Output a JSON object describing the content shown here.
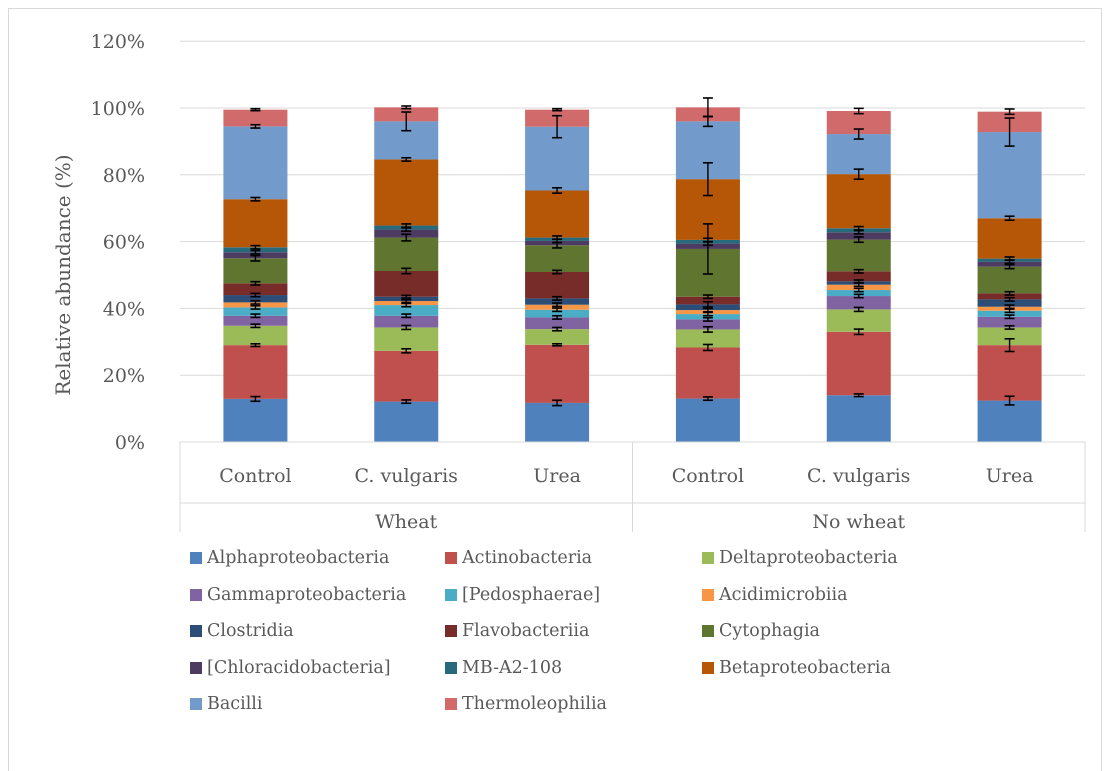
{
  "chart_data": {
    "type": "bar",
    "stacked": true,
    "ylabel": "Relative abundance (%)",
    "xlabel": "",
    "ylim": [
      0,
      120
    ],
    "yticks": [
      "0%",
      "20%",
      "40%",
      "60%",
      "80%",
      "100%",
      "120%"
    ],
    "grid": true,
    "legend_position": "bottom",
    "groups": [
      {
        "label": "Wheat",
        "categories": [
          "Control",
          "C. vulgaris",
          "Urea"
        ]
      },
      {
        "label": "No wheat",
        "categories": [
          "Control",
          "C. vulgaris",
          "Urea"
        ]
      }
    ],
    "categories": [
      "Control",
      "C. vulgaris",
      "Urea",
      "Control",
      "C. vulgaris",
      "Urea"
    ],
    "series": [
      {
        "name": "Alphaproteobacteria",
        "color": "#4f81bd",
        "values": [
          12.9,
          12.1,
          11.7,
          13.0,
          14.0,
          12.4
        ],
        "errors": [
          0.7,
          0.5,
          0.8,
          0.5,
          0.4,
          1.3
        ]
      },
      {
        "name": "Actinobacteria",
        "color": "#c0504d",
        "values": [
          16.1,
          15.2,
          17.4,
          15.3,
          19.0,
          16.6
        ],
        "errors": [
          0.4,
          0.6,
          0.3,
          0.9,
          0.8,
          1.9
        ]
      },
      {
        "name": "Deltaproteobacteria",
        "color": "#9bbb59",
        "values": [
          5.8,
          7.0,
          4.7,
          5.4,
          6.7,
          5.3
        ],
        "errors": [
          0.5,
          0.6,
          0.5,
          0.8,
          0.6,
          0.5
        ]
      },
      {
        "name": "Gammaproteobacteria",
        "color": "#8064a2",
        "values": [
          3.0,
          3.5,
          3.5,
          3.0,
          4.0,
          3.2
        ],
        "errors": [
          0.5,
          0.5,
          0.5,
          0.5,
          0.5,
          0.5
        ]
      },
      {
        "name": "[Pedosphaerae]",
        "color": "#4bacc6",
        "values": [
          2.5,
          3.2,
          2.3,
          1.6,
          1.8,
          1.8
        ],
        "errors": [
          0.5,
          0.5,
          0.5,
          0.5,
          0.5,
          0.5
        ]
      },
      {
        "name": "Acidimicrobiia",
        "color": "#f79646",
        "values": [
          1.5,
          1.2,
          1.5,
          1.2,
          1.6,
          1.2
        ],
        "errors": [
          0.5,
          0.4,
          0.5,
          0.5,
          0.5,
          0.5
        ]
      },
      {
        "name": "Clostridia",
        "color": "#2c4d75",
        "values": [
          2.2,
          1.3,
          1.9,
          1.7,
          1.0,
          2.2
        ],
        "errors": [
          0.5,
          0.4,
          0.5,
          0.8,
          0.4,
          0.5
        ]
      },
      {
        "name": "Flavobacteriia",
        "color": "#772c2a",
        "values": [
          3.5,
          7.7,
          7.9,
          2.3,
          3.0,
          1.8
        ],
        "errors": [
          0.5,
          0.8,
          0.5,
          0.5,
          0.5,
          0.5
        ]
      },
      {
        "name": "Cytophagia",
        "color": "#5f7530",
        "values": [
          7.5,
          10.0,
          8.0,
          14.3,
          9.5,
          8.0
        ],
        "errors": [
          0.8,
          1.0,
          0.8,
          7.5,
          0.8,
          0.6
        ]
      },
      {
        "name": "[Chloracidobacteria]",
        "color": "#4d3b62",
        "values": [
          1.8,
          2.4,
          1.3,
          1.6,
          2.2,
          1.5
        ],
        "errors": [
          0.5,
          0.5,
          0.5,
          0.5,
          0.5,
          0.5
        ]
      },
      {
        "name": "MB-A2-108",
        "color": "#276a7c",
        "values": [
          1.5,
          1.2,
          1.0,
          1.1,
          1.2,
          0.9
        ],
        "errors": [
          0.5,
          0.5,
          0.5,
          0.5,
          0.5,
          0.5
        ]
      },
      {
        "name": "Betaproteobacteria",
        "color": "#b65708",
        "values": [
          14.4,
          19.8,
          14.1,
          18.2,
          16.2,
          12.1
        ],
        "errors": [
          0.5,
          0.5,
          0.8,
          4.9,
          1.5,
          0.6
        ]
      },
      {
        "name": "Bacilli",
        "color": "#729aca",
        "values": [
          21.8,
          11.4,
          19.1,
          17.3,
          12.0,
          25.8
        ],
        "errors": [
          0.5,
          2.8,
          3.3,
          1.5,
          1.5,
          4.2
        ]
      },
      {
        "name": "Thermoleophilia",
        "color": "#d16b6b",
        "values": [
          5.0,
          4.2,
          5.1,
          4.2,
          6.9,
          6.1
        ],
        "errors": [
          0.3,
          0.4,
          0.3,
          2.8,
          0.8,
          0.8
        ]
      }
    ]
  }
}
